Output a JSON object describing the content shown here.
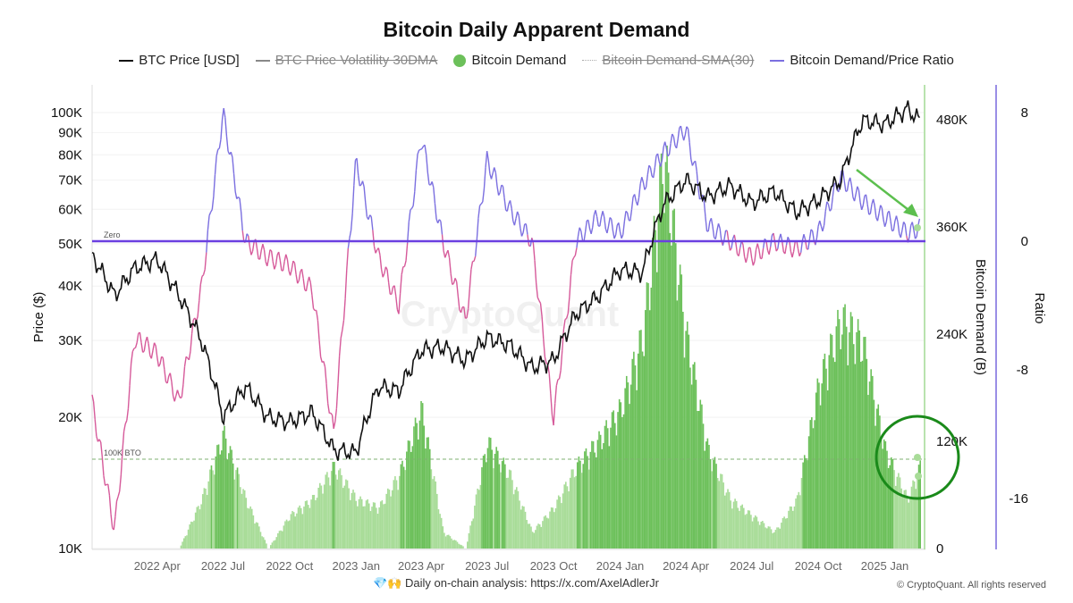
{
  "chart_data": {
    "type": "line",
    "title": "Bitcoin Daily Apparent Demand",
    "legend": [
      {
        "name": "BTC Price [USD]",
        "color": "#111111",
        "enabled": true
      },
      {
        "name": "BTC Price Volatility 30DMA",
        "color": "#888888",
        "enabled": false
      },
      {
        "name": "Bitcoin Demand",
        "color": "#6cc05a",
        "enabled": true
      },
      {
        "name": "Bitcoin Demand-SMA(30)",
        "color": "#aaaaaa",
        "enabled": false
      },
      {
        "name": "Bitcoin Demand/Price Ratio",
        "color": "#7b6fe0",
        "enabled": true
      }
    ],
    "legend_placement": "top",
    "x_ticks": [
      "2022 Apr",
      "2022 Jul",
      "2022 Oct",
      "2023 Jan",
      "2023 Apr",
      "2023 Jul",
      "2023 Oct",
      "2024 Jan",
      "2024 Apr",
      "2024 Jul",
      "2024 Oct",
      "2025 Jan"
    ],
    "x_range": [
      "2022-01-01",
      "2025-02-20"
    ],
    "y_left": {
      "label": "Price ($)",
      "scale": "log",
      "range": [
        10000,
        110000
      ],
      "ticks": [
        "100K",
        "90K",
        "80K",
        "70K",
        "60K",
        "50K",
        "40K",
        "30K",
        "20K",
        "10K"
      ],
      "tick_values": [
        100000,
        90000,
        80000,
        70000,
        60000,
        50000,
        40000,
        30000,
        20000,
        10000
      ]
    },
    "y_right1": {
      "label": "Bitcoin Demand (B)",
      "range": [
        0,
        480000
      ],
      "ticks": [
        "480K",
        "360K",
        "240K",
        "120K",
        "0"
      ],
      "tick_values": [
        480000,
        360000,
        240000,
        120000,
        0
      ]
    },
    "y_right2": {
      "label": "Ratio",
      "range": [
        -20,
        9.5
      ],
      "ticks": [
        "8",
        "0",
        "-8",
        "-16"
      ],
      "tick_values": [
        8,
        0,
        -8,
        -16
      ]
    },
    "x": [
      "2022-01-01",
      "2022-02-01",
      "2022-03-01",
      "2022-04-01",
      "2022-05-01",
      "2022-06-01",
      "2022-07-01",
      "2022-08-01",
      "2022-09-01",
      "2022-10-01",
      "2022-11-01",
      "2022-12-01",
      "2023-01-01",
      "2023-02-01",
      "2023-03-01",
      "2023-04-01",
      "2023-05-01",
      "2023-06-01",
      "2023-07-01",
      "2023-08-01",
      "2023-09-01",
      "2023-10-01",
      "2023-11-01",
      "2023-12-01",
      "2024-01-01",
      "2024-02-01",
      "2024-03-01",
      "2024-04-01",
      "2024-05-01",
      "2024-06-01",
      "2024-07-01",
      "2024-08-01",
      "2024-09-01",
      "2024-10-01",
      "2024-11-01",
      "2024-12-01",
      "2025-01-01",
      "2025-02-01",
      "2025-02-18"
    ],
    "series": [
      {
        "name": "BTC Price [USD]",
        "axis": "y_left",
        "values": [
          47000,
          38000,
          44000,
          46000,
          38000,
          30000,
          20000,
          23500,
          20000,
          19500,
          20500,
          16800,
          16600,
          23500,
          23000,
          28500,
          29000,
          27000,
          30500,
          29300,
          26000,
          27000,
          34500,
          37800,
          43500,
          43000,
          61500,
          70000,
          64000,
          68000,
          62000,
          66000,
          59000,
          63000,
          70000,
          96000,
          94000,
          102000,
          96000
        ]
      },
      {
        "name": "Bitcoin Demand/Price Ratio",
        "axis": "y_right2",
        "values": [
          -10,
          -18,
          -6,
          -7,
          -10,
          -3,
          8,
          0,
          -1,
          -1.5,
          -3,
          -12,
          5,
          -1,
          -4,
          6.5,
          0,
          -5,
          5,
          2,
          0,
          -11,
          0,
          1.5,
          0.5,
          3.5,
          5.5,
          7,
          1,
          0,
          -1,
          0,
          -0.5,
          0.5,
          4,
          2.5,
          1.5,
          0.5,
          0.8
        ]
      },
      {
        "name": "Bitcoin Demand",
        "axis": "y_right1",
        "values": [
          0,
          0,
          0,
          0,
          0,
          60000,
          140000,
          60000,
          0,
          40000,
          60000,
          100000,
          60000,
          50000,
          90000,
          170000,
          20000,
          0,
          130000,
          90000,
          20000,
          50000,
          100000,
          130000,
          170000,
          260000,
          480000,
          260000,
          120000,
          60000,
          40000,
          20000,
          60000,
          200000,
          280000,
          250000,
          120000,
          60000,
          100000
        ]
      }
    ],
    "annotations": [
      {
        "text": "Zero",
        "axis": "y_right2",
        "value": 0
      },
      {
        "text": "100K BTO",
        "axis": "y_right1",
        "value": 100000
      }
    ]
  },
  "watermark": "CryptoQuant",
  "footer": {
    "emoji": "💎🙌",
    "text": "Daily on-chain analysis:",
    "link": "https://x.com/AxelAdlerJr",
    "copyright": "© CryptoQuant. All rights reserved"
  }
}
